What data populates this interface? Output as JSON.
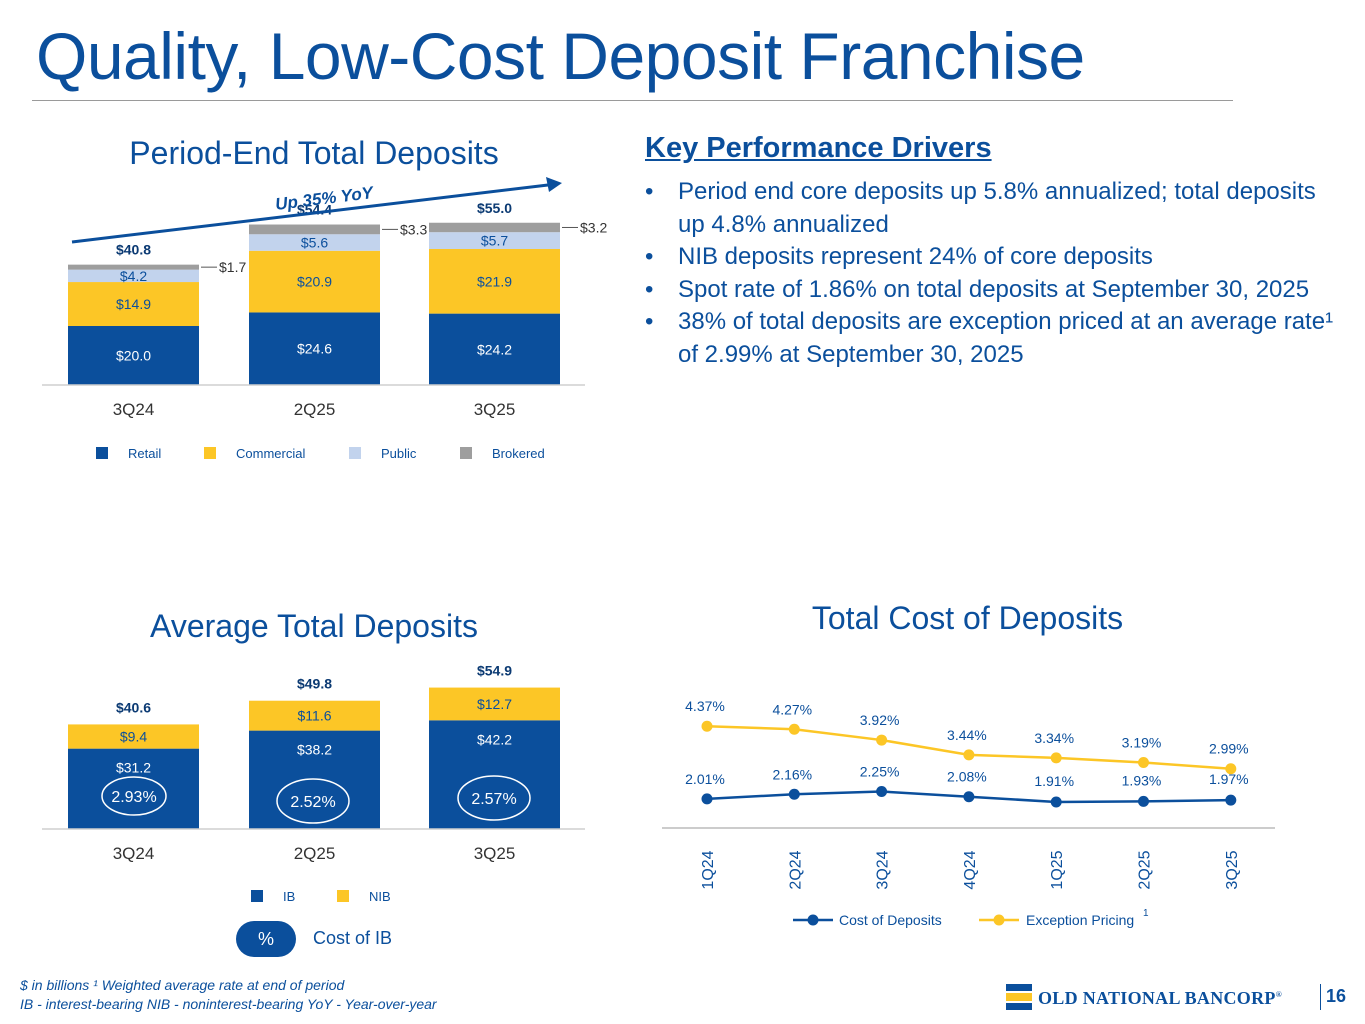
{
  "page": {
    "title": "Quality, Low-Cost Deposit Franchise",
    "page_number": "16",
    "logo_text": "OLD NATIONAL BANCORP",
    "logo_reg": "®"
  },
  "colors": {
    "brand_blue": "#0b4f9c",
    "retail": "#0b4f9c",
    "commercial": "#fcc626",
    "public": "#c2d3ed",
    "brokered": "#9e9e9e",
    "ib": "#0b4f9c",
    "nib": "#fcc626",
    "cost_line": "#0b4f9c",
    "exception_line": "#fcc626"
  },
  "key_drivers": {
    "heading": "Key Performance Drivers",
    "bullets": [
      "Period end core deposits up 5.8% annualized; total deposits up 4.8% annualized",
      "NIB deposits represent 24% of core deposits",
      "Spot rate of 1.86% on total deposits at September 30, 2025",
      "38% of total deposits are exception priced at an average rate¹ of 2.99% at September 30, 2025"
    ]
  },
  "cost_of_ib": {
    "symbol": "%",
    "label": "Cost of IB"
  },
  "footnotes": {
    "line1": "$ in billions    ¹ Weighted average rate at end of period",
    "line2": "IB - interest-bearing    NIB - noninterest-bearing    YoY - Year-over-year"
  },
  "chart_data": [
    {
      "id": "period_end",
      "type": "bar",
      "stacked": true,
      "title": "Period-End Total Deposits",
      "annotation": "Up 35% YoY",
      "categories": [
        "3Q24",
        "2Q25",
        "3Q25"
      ],
      "series": [
        {
          "name": "Retail",
          "values": [
            20.0,
            24.6,
            24.2
          ],
          "labels": [
            "$20.0",
            "$24.6",
            "$24.2"
          ]
        },
        {
          "name": "Commercial",
          "values": [
            14.9,
            20.9,
            21.9
          ],
          "labels": [
            "$14.9",
            "$20.9",
            "$21.9"
          ]
        },
        {
          "name": "Public",
          "values": [
            4.2,
            5.6,
            5.7
          ],
          "labels": [
            "$4.2",
            "$5.6",
            "$5.7"
          ]
        },
        {
          "name": "Brokered",
          "values": [
            1.7,
            3.3,
            3.2
          ],
          "labels": [
            "$1.7",
            "$3.3",
            "$3.2"
          ]
        }
      ],
      "totals": [
        "$40.8",
        "$54.4",
        "$55.0"
      ],
      "ylim": [
        0,
        65
      ],
      "legend": [
        "Retail",
        "Commercial",
        "Public",
        "Brokered"
      ]
    },
    {
      "id": "average",
      "type": "bar",
      "stacked": true,
      "title": "Average Total Deposits",
      "categories": [
        "3Q24",
        "2Q25",
        "3Q25"
      ],
      "series": [
        {
          "name": "IB",
          "values": [
            31.2,
            38.2,
            42.2
          ],
          "labels": [
            "$31.2",
            "$38.2",
            "$42.2"
          ]
        },
        {
          "name": "NIB",
          "values": [
            9.4,
            11.6,
            12.7
          ],
          "labels": [
            "$9.4",
            "$11.6",
            "$12.7"
          ]
        }
      ],
      "totals": [
        "$40.6",
        "$49.8",
        "$54.9"
      ],
      "cost_of_ib": [
        "2.93%",
        "2.52%",
        "2.57%"
      ],
      "ylim": [
        0,
        65
      ],
      "legend": [
        "IB",
        "NIB"
      ]
    },
    {
      "id": "cost_of_deposits",
      "type": "line",
      "title": "Total Cost of Deposits",
      "categories": [
        "1Q24",
        "2Q24",
        "3Q24",
        "4Q24",
        "1Q25",
        "2Q25",
        "3Q25"
      ],
      "series": [
        {
          "name": "Cost of Deposits",
          "values": [
            2.01,
            2.16,
            2.25,
            2.08,
            1.91,
            1.93,
            1.97
          ],
          "labels": [
            "2.01%",
            "2.16%",
            "2.25%",
            "2.08%",
            "1.91%",
            "1.93%",
            "1.97%"
          ]
        },
        {
          "name": "Exception Pricing",
          "values": [
            4.37,
            4.27,
            3.92,
            3.44,
            3.34,
            3.19,
            2.99
          ],
          "labels": [
            "4.37%",
            "4.27%",
            "3.92%",
            "3.44%",
            "3.34%",
            "3.19%",
            "2.99%"
          ]
        }
      ],
      "legend": [
        "Cost of Deposits",
        "Exception Pricing"
      ],
      "legend_superscript": "1",
      "ylim": [
        0,
        5
      ]
    }
  ]
}
